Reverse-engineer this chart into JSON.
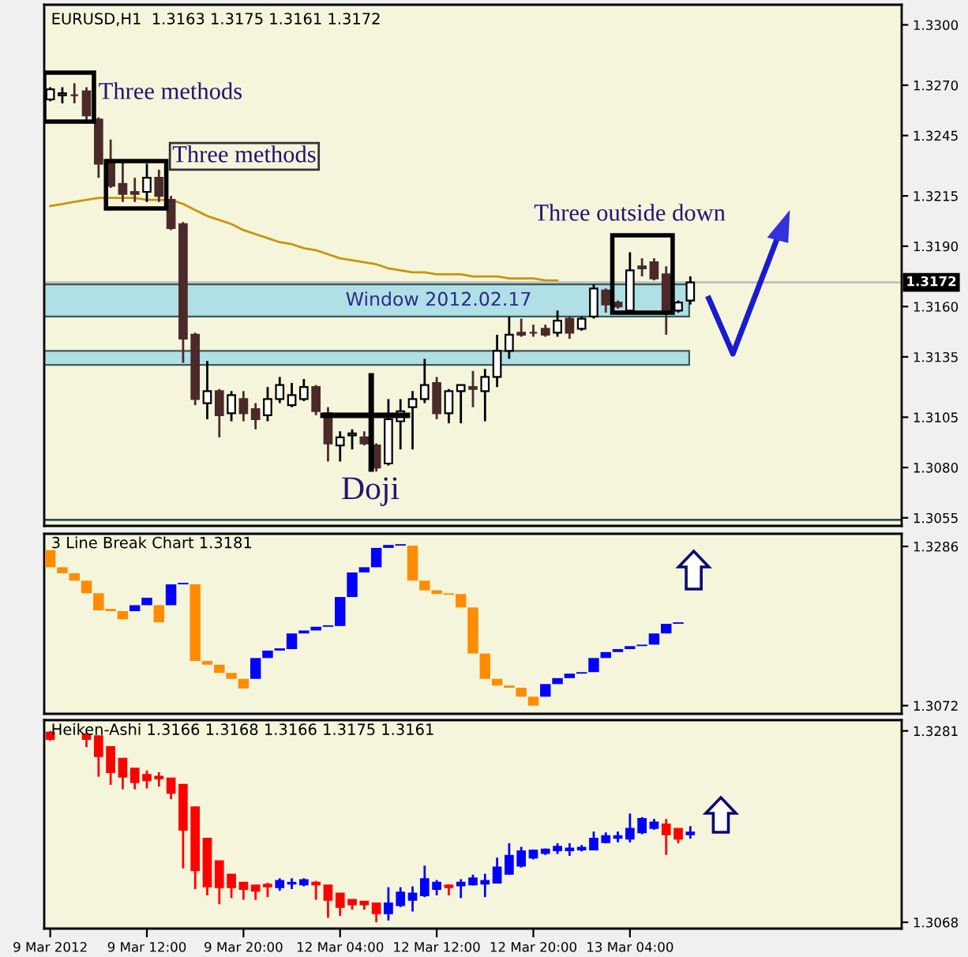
{
  "chart_data": [
    {
      "type": "candlestick",
      "title": "EURUSD,H1  1.3163 1.3175 1.3161 1.3172",
      "tick_labels": "y",
      "categories": [
        null,
        null,
        null,
        null,
        null,
        null,
        null,
        null,
        null,
        null,
        null,
        null,
        null,
        null,
        null,
        null,
        null,
        null,
        null,
        null,
        null,
        null,
        null,
        null,
        null,
        null,
        null,
        null,
        null,
        null,
        null,
        null,
        null,
        null,
        null,
        null,
        null,
        null,
        null,
        null,
        null,
        null,
        null,
        null,
        null,
        null,
        null,
        null,
        null,
        null,
        null,
        null,
        null,
        null,
        null,
        null,
        null,
        null,
        null,
        null,
        null,
        null,
        null,
        null,
        null,
        null,
        null,
        null,
        null,
        null,
        null
      ],
      "ohlc": [
        [
          1.3263,
          1.3269,
          1.3262,
          1.3268
        ],
        [
          1.3265,
          1.3269,
          1.3261,
          1.3266
        ],
        [
          1.3265,
          1.3271,
          1.3261,
          1.3265
        ],
        [
          1.3267,
          1.3269,
          1.3251,
          1.3255
        ],
        [
          1.3253,
          1.3254,
          1.3224,
          1.3231
        ],
        [
          1.3232,
          1.3243,
          1.3219,
          1.322
        ],
        [
          1.3221,
          1.3232,
          1.3212,
          1.3216
        ],
        [
          1.3217,
          1.3224,
          1.3212,
          1.3216
        ],
        [
          1.3217,
          1.3231,
          1.3212,
          1.3224
        ],
        [
          1.3224,
          1.3228,
          1.3212,
          1.3215
        ],
        [
          1.3213,
          1.3215,
          1.3198,
          1.3199
        ],
        [
          1.3201,
          1.3202,
          1.3132,
          1.3144
        ],
        [
          1.3146,
          1.3147,
          1.3111,
          1.3114
        ],
        [
          1.3112,
          1.3133,
          1.3104,
          1.3118
        ],
        [
          1.3118,
          1.3119,
          1.3095,
          1.3106
        ],
        [
          1.3107,
          1.3118,
          1.3103,
          1.3116
        ],
        [
          1.3114,
          1.3118,
          1.3103,
          1.3107
        ],
        [
          1.3109,
          1.3112,
          1.3099,
          1.3104
        ],
        [
          1.3106,
          1.312,
          1.3103,
          1.3114
        ],
        [
          1.3114,
          1.3125,
          1.3112,
          1.3121
        ],
        [
          1.3111,
          1.3122,
          1.311,
          1.3116
        ],
        [
          1.3114,
          1.3124,
          1.3113,
          1.312
        ],
        [
          1.312,
          1.3121,
          1.3106,
          1.3108
        ],
        [
          1.3107,
          1.311,
          1.3083,
          1.3092
        ],
        [
          1.3091,
          1.3098,
          1.3083,
          1.3095
        ],
        [
          1.3096,
          1.3099,
          1.3089,
          1.3097
        ],
        [
          1.3095,
          1.3098,
          1.3091,
          1.3092
        ],
        [
          1.3091,
          1.3092,
          1.3078,
          1.308
        ],
        [
          1.3082,
          1.3114,
          1.3081,
          1.3104
        ],
        [
          1.3103,
          1.3114,
          1.3089,
          1.3108
        ],
        [
          1.311,
          1.3118,
          1.3089,
          1.3114
        ],
        [
          1.3114,
          1.3134,
          1.3112,
          1.3121
        ],
        [
          1.3122,
          1.3125,
          1.3104,
          1.3107
        ],
        [
          1.3107,
          1.3119,
          1.3102,
          1.3118
        ],
        [
          1.3118,
          1.3121,
          1.3102,
          1.3121
        ],
        [
          1.312,
          1.3128,
          1.311,
          1.3119
        ],
        [
          1.3118,
          1.3129,
          1.3103,
          1.3125
        ],
        [
          1.3125,
          1.3146,
          1.312,
          1.3138
        ],
        [
          1.3138,
          1.3155,
          1.3134,
          1.3146
        ],
        [
          1.3147,
          1.3154,
          1.3145,
          1.3146
        ],
        [
          1.3147,
          1.3151,
          1.3145,
          1.3147
        ],
        [
          1.3149,
          1.3151,
          1.3145,
          1.3146
        ],
        [
          1.3147,
          1.3158,
          1.3145,
          1.3153
        ],
        [
          1.3154,
          1.3155,
          1.3144,
          1.3147
        ],
        [
          1.3149,
          1.3155,
          1.3148,
          1.3154
        ],
        [
          1.3155,
          1.3171,
          1.3154,
          1.3169
        ],
        [
          1.3168,
          1.3169,
          1.3157,
          1.3161
        ],
        [
          1.3162,
          1.3163,
          1.3159,
          1.316
        ],
        [
          1.3158,
          1.3187,
          1.3157,
          1.3178
        ],
        [
          1.318,
          1.3184,
          1.3175,
          1.3179
        ],
        [
          1.3182,
          1.3184,
          1.3173,
          1.3174
        ],
        [
          1.3176,
          1.318,
          1.3146,
          1.3157
        ],
        [
          1.3158,
          1.3163,
          1.3157,
          1.3162
        ],
        [
          1.3163,
          1.3175,
          1.3161,
          1.3172
        ],
        null,
        null,
        null,
        null,
        null,
        null,
        null,
        null,
        null,
        null,
        null,
        null,
        null,
        null,
        null,
        null,
        null
      ],
      "colors": [
        "#ffffff",
        "#ffffff",
        "#4b2a2a",
        "#4b2a2a",
        "#4b2a2a",
        "#4b2a2a",
        "#4b2a2a",
        "#4b2a2a",
        "#ffffff",
        "#4b2a2a",
        "#4b2a2a",
        "#4b2a2a",
        "#4b2a2a",
        "#ffffff",
        "#4b2a2a",
        "#ffffff",
        "#4b2a2a",
        "#4b2a2a",
        "#ffffff",
        "#ffffff",
        "#ffffff",
        "#ffffff",
        "#4b2a2a",
        "#4b2a2a",
        "#ffffff",
        "#ffffff",
        "#4b2a2a",
        "#4b2a2a",
        "#ffffff",
        "#ffffff",
        "#ffffff",
        "#ffffff",
        "#4b2a2a",
        "#ffffff",
        "#ffffff",
        "#4b2a2a",
        "#ffffff",
        "#ffffff",
        "#ffffff",
        "#4b2a2a",
        "#4b2a2a",
        "#4b2a2a",
        "#ffffff",
        "#4b2a2a",
        "#ffffff",
        "#ffffff",
        "#4b2a2a",
        "#4b2a2a",
        "#ffffff",
        "#4b2a2a",
        "#4b2a2a",
        "#4b2a2a",
        "#ffffff",
        "#ffffff",
        null,
        null,
        null,
        null,
        null,
        null,
        null,
        null,
        null,
        null,
        null,
        null,
        null,
        null,
        null,
        null,
        null
      ],
      "series": [
        {
          "type": "line",
          "color": "#c8960a",
          "values": [
            1.321,
            1.3211,
            1.3212,
            1.3213,
            1.3214,
            1.3214,
            1.3214,
            1.3214,
            1.3213,
            1.3213,
            1.3213,
            1.3211,
            1.3208,
            1.3205,
            1.3203,
            1.3201,
            1.3198,
            1.3196,
            1.3194,
            1.3192,
            1.3191,
            1.3189,
            1.3188,
            1.3186,
            1.3184,
            1.3183,
            1.3182,
            1.3181,
            1.3179,
            1.3178,
            1.3177,
            1.3177,
            1.3176,
            1.3176,
            1.3176,
            1.3175,
            1.3175,
            1.3175,
            1.3174,
            1.3174,
            1.3174,
            1.3173,
            1.3173,
            null,
            null,
            null,
            null,
            null,
            null,
            null,
            null,
            null,
            null,
            null,
            null,
            null,
            null,
            null,
            null,
            null,
            null,
            null,
            null,
            null,
            null,
            null,
            null,
            null,
            null,
            null,
            null
          ]
        }
      ],
      "ylim": [
        1.3051,
        1.331
      ],
      "yticks": [
        {
          "value": 1.33,
          "label": "1.3300"
        },
        {
          "value": 1.327,
          "label": "1.3270"
        },
        {
          "value": 1.3245,
          "label": "1.3245"
        },
        {
          "value": 1.3215,
          "label": "1.3215"
        },
        {
          "value": 1.319,
          "label": "1.3190"
        },
        {
          "value": 1.316,
          "label": "1.3160"
        },
        {
          "value": 1.3135,
          "label": "1.3135"
        },
        {
          "value": 1.3105,
          "label": "1.3105"
        },
        {
          "value": 1.308,
          "label": "1.3080"
        },
        {
          "value": 1.3055,
          "label": "1.3055"
        }
      ],
      "bands": [
        {
          "axis": "y",
          "from": 1.3155,
          "to": 1.3171,
          "label": "Window 2012.02.17",
          "color": "#b0dfe5"
        },
        {
          "axis": "y",
          "from": 1.3131,
          "to": 1.3138,
          "label": null,
          "color": "#b0dfe5"
        }
      ],
      "ref_lines": [
        {
          "axis": "y",
          "value": 1.3172,
          "label": "1.3172",
          "color": "#c0c0c0"
        },
        {
          "axis": "y",
          "value": 1.3054,
          "label": null,
          "color": "#2f4f4f"
        }
      ],
      "annotations": [
        "Three methods",
        "Three methods",
        "Three outside down",
        "Doji"
      ]
    },
    {
      "type": "bar",
      "title": "3 Line Break Chart 1.3181",
      "tick_labels": "y",
      "categories": [
        null,
        null,
        null,
        null,
        null,
        null,
        null,
        null,
        null,
        null,
        null,
        null,
        null,
        null,
        null,
        null,
        null,
        null,
        null,
        null,
        null,
        null,
        null,
        null,
        null,
        null,
        null,
        null,
        null,
        null,
        null,
        null,
        null,
        null,
        null,
        null,
        null,
        null,
        null,
        null,
        null,
        null,
        null,
        null,
        null,
        null,
        null,
        null,
        null,
        null,
        null,
        null,
        null,
        null,
        null,
        null,
        null,
        null,
        null,
        null,
        null,
        null,
        null,
        null,
        null,
        null,
        null,
        null,
        null,
        null,
        null
      ],
      "base": [
        1.3258,
        1.325,
        1.324,
        1.3223,
        1.32,
        1.3199,
        1.3188,
        1.3199,
        1.3207,
        1.3184,
        1.3207,
        1.3235,
        1.3132,
        1.3127,
        1.3116,
        1.3108,
        1.3095,
        1.3108,
        1.3136,
        1.3146,
        1.3148,
        1.3169,
        1.3173,
        1.3178,
        1.3179,
        1.3218,
        1.3251,
        1.3258,
        1.3284,
        1.3287,
        1.324,
        1.3227,
        1.3222,
        1.3221,
        1.3204,
        1.3142,
        1.3108,
        1.3099,
        1.3096,
        1.3084,
        1.3072,
        1.3084,
        1.3101,
        1.3109,
        1.3115,
        1.3117,
        1.3136,
        1.3144,
        1.3148,
        1.3152,
        1.3154,
        1.3169,
        1.3182,
        null,
        null,
        null,
        null,
        null,
        null,
        null,
        null,
        null,
        null,
        null,
        null,
        null,
        null,
        null,
        null,
        null,
        null
      ],
      "values": [
        0.0023,
        0.0008,
        0.001,
        0.0017,
        0.0023,
        0.0003,
        0.0011,
        0.0008,
        0.001,
        0.0023,
        0.0028,
        0.0002,
        0.0103,
        0.0005,
        0.0011,
        0.0008,
        0.0013,
        0.0028,
        0.001,
        0.0003,
        0.0021,
        0.0004,
        0.0005,
        0.0002,
        0.0039,
        0.0033,
        0.0007,
        0.0026,
        0.0004,
        0.0002,
        0.0047,
        0.0013,
        0.0005,
        0.0002,
        0.0018,
        0.0062,
        0.0034,
        0.0009,
        0.0003,
        0.0012,
        0.0012,
        0.0017,
        0.0008,
        0.0006,
        0.0002,
        0.0019,
        0.0008,
        0.0004,
        0.0004,
        0.0002,
        0.0015,
        0.0013,
        0.0002,
        null,
        null,
        null,
        null,
        null,
        null,
        null,
        null,
        null,
        null,
        null,
        null,
        null,
        null,
        null,
        null,
        null,
        null
      ],
      "colors": [
        "#ff8c00",
        "#ff8c00",
        "#ff8c00",
        "#ff8c00",
        "#ff8c00",
        "#ff8c00",
        "#ff8c00",
        "#0000ff",
        "#0000ff",
        "#ff8c00",
        "#0000ff",
        "#0000ff",
        "#ff8c00",
        "#ff8c00",
        "#ff8c00",
        "#ff8c00",
        "#ff8c00",
        "#0000ff",
        "#0000ff",
        "#0000ff",
        "#0000ff",
        "#0000ff",
        "#0000ff",
        "#0000ff",
        "#0000ff",
        "#0000ff",
        "#0000ff",
        "#0000ff",
        "#0000ff",
        "#0000ff",
        "#ff8c00",
        "#ff8c00",
        "#ff8c00",
        "#ff8c00",
        "#ff8c00",
        "#ff8c00",
        "#ff8c00",
        "#ff8c00",
        "#ff8c00",
        "#ff8c00",
        "#ff8c00",
        "#0000ff",
        "#0000ff",
        "#0000ff",
        "#0000ff",
        "#0000ff",
        "#0000ff",
        "#0000ff",
        "#0000ff",
        "#0000ff",
        "#0000ff",
        "#0000ff",
        "#0000ff",
        null,
        null,
        null,
        null,
        null,
        null,
        null,
        null,
        null,
        null,
        null,
        null,
        null,
        null,
        null,
        null,
        null,
        null
      ],
      "ylim": [
        1.3061,
        1.3303
      ],
      "yticks": [
        1.3286,
        1.3072
      ]
    },
    {
      "type": "candlestick",
      "title": "Heiken-Ashi 1.3166 1.3168 1.3166 1.3175 1.3161",
      "categories": [
        "9 Mar 2012",
        null,
        null,
        null,
        null,
        null,
        null,
        null,
        "9 Mar 12:00",
        null,
        null,
        null,
        null,
        null,
        null,
        null,
        "9 Mar 20:00",
        null,
        null,
        null,
        null,
        null,
        null,
        null,
        "12 Mar 04:00",
        null,
        null,
        null,
        null,
        null,
        null,
        null,
        "12 Mar 12:00",
        null,
        null,
        null,
        null,
        null,
        null,
        null,
        "12 Mar 20:00",
        null,
        null,
        null,
        null,
        null,
        null,
        null,
        "13 Mar 04:00",
        null,
        null,
        null,
        null,
        null,
        null,
        null,
        null,
        null,
        null,
        null,
        null,
        null,
        null,
        null,
        null,
        null,
        null,
        null,
        null,
        null,
        null
      ],
      "ohlc": [
        [
          1.3279,
          1.3281,
          1.327,
          1.3272
        ],
        null,
        null,
        [
          1.3277,
          1.3279,
          1.3263,
          1.3272
        ],
        [
          1.3275,
          1.3275,
          1.323,
          1.3253
        ],
        [
          1.3263,
          1.3263,
          1.3221,
          1.3235
        ],
        [
          1.325,
          1.325,
          1.3216,
          1.323
        ],
        [
          1.3239,
          1.3239,
          1.3216,
          1.3224
        ],
        [
          1.3232,
          1.3237,
          1.3217,
          1.3226
        ],
        [
          1.323,
          1.3235,
          1.3219,
          1.3228
        ],
        [
          1.3228,
          1.3228,
          1.3205,
          1.3212
        ],
        [
          1.3221,
          1.3221,
          1.3128,
          1.3171
        ],
        [
          1.3196,
          1.3196,
          1.3105,
          1.3126
        ],
        [
          1.3161,
          1.3161,
          1.3098,
          1.3108
        ],
        [
          1.3136,
          1.3136,
          1.3088,
          1.3107
        ],
        [
          1.3121,
          1.3121,
          1.3095,
          1.3107
        ],
        [
          1.3112,
          1.3112,
          1.3093,
          1.3105
        ],
        [
          1.3109,
          1.3109,
          1.3093,
          1.3103
        ],
        [
          1.311,
          1.3112,
          1.3096,
          1.3108
        ],
        [
          1.3107,
          1.3117,
          1.3103,
          1.3114
        ],
        [
          1.3111,
          1.3117,
          1.3105,
          1.3112
        ],
        [
          1.311,
          1.3117,
          1.3108,
          1.3115
        ],
        [
          1.3112,
          1.3114,
          1.3093,
          1.311
        ],
        [
          1.3109,
          1.3109,
          1.3073,
          1.3093
        ],
        [
          1.31,
          1.31,
          1.3075,
          1.3085
        ],
        [
          1.3093,
          1.3093,
          1.3082,
          1.3088
        ],
        [
          1.3091,
          1.3091,
          1.3082,
          1.3088
        ],
        [
          1.3089,
          1.3089,
          1.3068,
          1.3078
        ],
        [
          1.3078,
          1.3107,
          1.307,
          1.3089
        ],
        [
          1.3087,
          1.3107,
          1.3085,
          1.3101
        ],
        [
          1.3093,
          1.3108,
          1.308,
          1.31
        ],
        [
          1.3098,
          1.3131,
          1.3096,
          1.3116
        ],
        [
          1.3105,
          1.3115,
          1.3098,
          1.3112
        ],
        [
          1.3109,
          1.311,
          1.3098,
          1.3107
        ],
        [
          1.3109,
          1.3116,
          1.3095,
          1.3112
        ],
        [
          1.311,
          1.3121,
          1.3109,
          1.3117
        ],
        [
          1.3111,
          1.3122,
          1.3096,
          1.3114
        ],
        [
          1.3112,
          1.314,
          1.3112,
          1.3129
        ],
        [
          1.3122,
          1.3156,
          1.3121,
          1.3142
        ],
        [
          1.3131,
          1.3152,
          1.3129,
          1.3147
        ],
        [
          1.314,
          1.3149,
          1.3138,
          1.3148
        ],
        [
          1.3145,
          1.315,
          1.3143,
          1.3149
        ],
        [
          1.3148,
          1.3156,
          1.3144,
          1.3152
        ],
        [
          1.3148,
          1.3156,
          1.3142,
          1.315
        ],
        [
          1.3149,
          1.3154,
          1.3147,
          1.3151
        ],
        [
          1.3149,
          1.3169,
          1.3148,
          1.3161
        ],
        [
          1.3157,
          1.3168,
          1.3156,
          1.3164
        ],
        [
          1.3162,
          1.3169,
          1.3157,
          1.3164
        ],
        [
          1.3161,
          1.3189,
          1.3157,
          1.3172
        ],
        [
          1.3168,
          1.3185,
          1.3166,
          1.3183
        ],
        [
          1.3173,
          1.3183,
          1.3171,
          1.3179
        ],
        [
          1.3177,
          1.3183,
          1.3143,
          1.3166
        ],
        [
          1.3172,
          1.3172,
          1.3156,
          1.3161
        ],
        [
          1.3166,
          1.3175,
          1.3161,
          1.3168
        ],
        null,
        null,
        null,
        null,
        null,
        null,
        null,
        null,
        null,
        null,
        null,
        null,
        null,
        null,
        null,
        null,
        null
      ],
      "colors": [
        "#ff0000",
        "#ff0000",
        "#ff0000",
        "#ff0000",
        "#ff0000",
        "#ff0000",
        "#ff0000",
        "#ff0000",
        "#ff0000",
        "#ff0000",
        "#ff0000",
        "#ff0000",
        "#ff0000",
        "#ff0000",
        "#ff0000",
        "#ff0000",
        "#ff0000",
        "#ff0000",
        "#ff0000",
        "#0000ff",
        "#0000ff",
        "#0000ff",
        "#ff0000",
        "#ff0000",
        "#ff0000",
        "#ff0000",
        "#ff0000",
        "#ff0000",
        "#0000ff",
        "#0000ff",
        "#0000ff",
        "#0000ff",
        "#0000ff",
        "#ff0000",
        "#0000ff",
        "#0000ff",
        "#0000ff",
        "#0000ff",
        "#0000ff",
        "#0000ff",
        "#0000ff",
        "#0000ff",
        "#0000ff",
        "#0000ff",
        "#0000ff",
        "#0000ff",
        "#0000ff",
        "#0000ff",
        "#0000ff",
        "#0000ff",
        "#0000ff",
        "#ff0000",
        "#ff0000",
        "#0000ff",
        null,
        null,
        null,
        null,
        null,
        null,
        null,
        null,
        null,
        null,
        null,
        null,
        null,
        null,
        null,
        null,
        null
      ],
      "ylim": [
        1.3061,
        1.3293
      ],
      "yticks": [
        1.3281,
        1.3068
      ]
    }
  ]
}
